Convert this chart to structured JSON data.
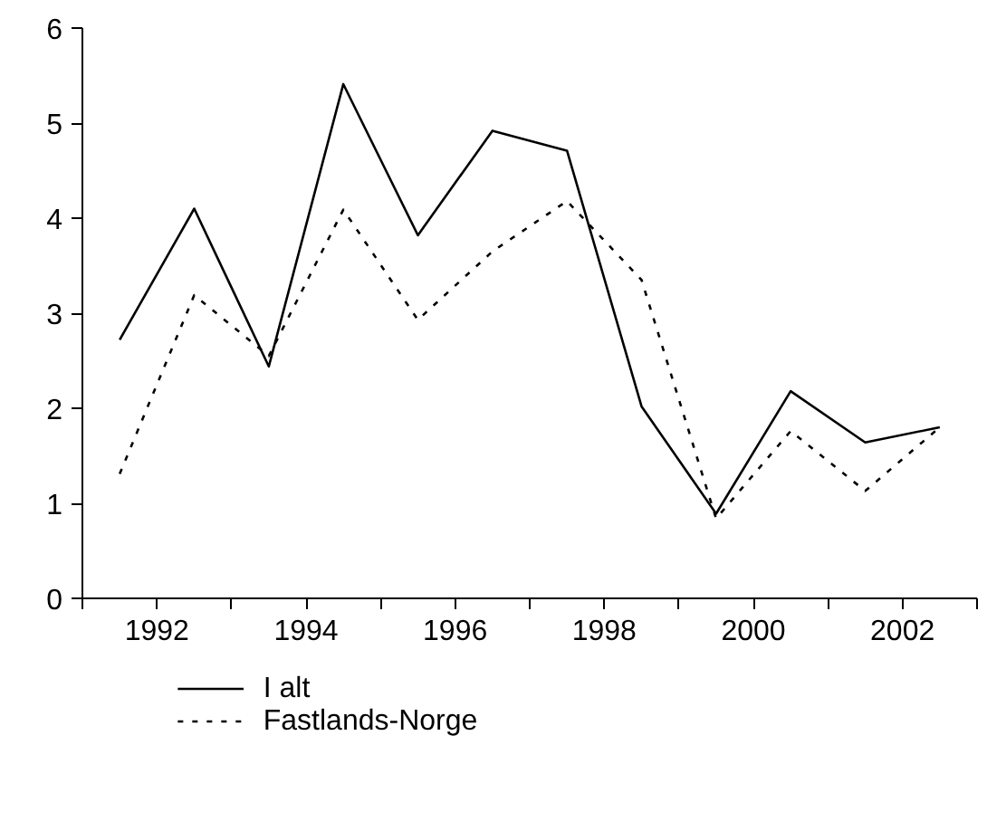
{
  "chart_data": {
    "type": "line",
    "x": [
      1991.5,
      1992.5,
      1993.5,
      1994.5,
      1995.5,
      1996.5,
      1997.5,
      1998.5,
      1999.5,
      2000.5,
      2001.5,
      2002.5
    ],
    "series": [
      {
        "name": "I alt",
        "color": "#000000",
        "line_style": "solid",
        "values": [
          2.72,
          4.1,
          2.44,
          5.41,
          3.82,
          4.92,
          4.71,
          2.02,
          0.89,
          2.18,
          1.64,
          1.8
        ]
      },
      {
        "name": "Fastlands-Norge",
        "color": "#000000",
        "line_style": "dotted",
        "values": [
          1.31,
          3.19,
          2.55,
          4.09,
          2.93,
          3.65,
          4.18,
          3.35,
          0.84,
          1.76,
          1.13,
          1.8
        ]
      }
    ],
    "xlim": [
      1991,
      2003
    ],
    "xticks": [
      {
        "value": 1991,
        "label": null
      },
      1992,
      {
        "value": 1993,
        "label": null
      },
      1994,
      {
        "value": 1995,
        "label": null
      },
      1996,
      {
        "value": 1997,
        "label": null
      },
      1998,
      {
        "value": 1999,
        "label": null
      },
      2000,
      {
        "value": 2001,
        "label": null
      },
      2002,
      {
        "value": 2003,
        "label": null
      }
    ],
    "ylim": [
      0,
      6
    ],
    "yticks": [
      0,
      1,
      2,
      3,
      4,
      5,
      6
    ],
    "grid": false,
    "legend": "bottom left",
    "marker": "none"
  }
}
